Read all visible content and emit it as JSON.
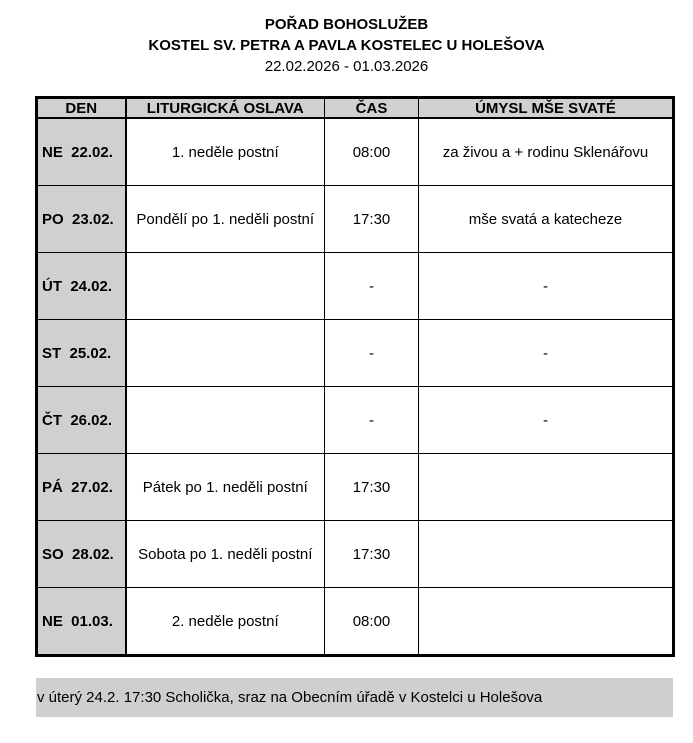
{
  "header": {
    "title": "POŘAD BOHOSLUŽEB",
    "church": "KOSTEL SV. PETRA A PAVLA KOSTELEC U HOLEŠOVA",
    "date_range": "22.02.2026 - 01.03.2026"
  },
  "table": {
    "columns": [
      "DEN",
      "LITURGICKÁ OSLAVA",
      "ČAS",
      "ÚMYSL MŠE SVATÉ"
    ],
    "rows": [
      {
        "day": "NE  22.02.",
        "celebration": "1. neděle postní",
        "time": "08:00",
        "intention": "za živou a + rodinu Sklenářovu"
      },
      {
        "day": "PO  23.02.",
        "celebration": "Pondělí po 1. neděli postní",
        "time": "17:30",
        "intention": "mše svatá a katecheze"
      },
      {
        "day": "ÚT  24.02.",
        "celebration": "",
        "time": "-",
        "intention": "-"
      },
      {
        "day": "ST  25.02.",
        "celebration": "",
        "time": "-",
        "intention": "-"
      },
      {
        "day": "ČT  26.02.",
        "celebration": "",
        "time": "-",
        "intention": "-"
      },
      {
        "day": "PÁ  27.02.",
        "celebration": "Pátek po 1. neděli postní",
        "time": "17:30",
        "intention": ""
      },
      {
        "day": "SO  28.02.",
        "celebration": "Sobota po 1. neděli postní",
        "time": "17:30",
        "intention": ""
      },
      {
        "day": "NE  01.03.",
        "celebration": "2. neděle postní",
        "time": "08:00",
        "intention": ""
      }
    ]
  },
  "note": "v úterý 24.2. 17:30 Scholička, sraz na Obecním úřadě v Kostelci u Holešova"
}
